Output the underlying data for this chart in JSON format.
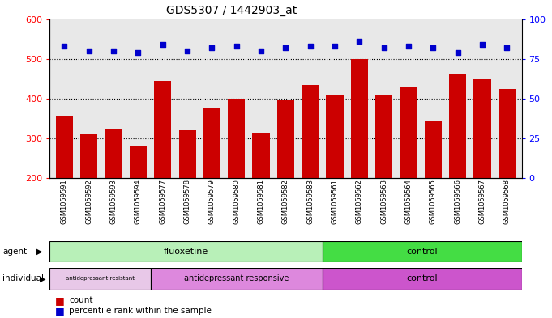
{
  "title": "GDS5307 / 1442903_at",
  "samples": [
    "GSM1059591",
    "GSM1059592",
    "GSM1059593",
    "GSM1059594",
    "GSM1059577",
    "GSM1059578",
    "GSM1059579",
    "GSM1059580",
    "GSM1059581",
    "GSM1059582",
    "GSM1059583",
    "GSM1059561",
    "GSM1059562",
    "GSM1059563",
    "GSM1059564",
    "GSM1059565",
    "GSM1059566",
    "GSM1059567",
    "GSM1059568"
  ],
  "bar_values": [
    357,
    310,
    325,
    280,
    445,
    320,
    378,
    400,
    315,
    398,
    435,
    410,
    500,
    410,
    430,
    345,
    460,
    448,
    425
  ],
  "percentiles": [
    83,
    80,
    80,
    79,
    84,
    80,
    82,
    83,
    80,
    82,
    83,
    83,
    86,
    82,
    83,
    82,
    79,
    84,
    82
  ],
  "ylim_left": [
    200,
    600
  ],
  "ylim_right": [
    0,
    100
  ],
  "yticks_left": [
    200,
    300,
    400,
    500,
    600
  ],
  "yticks_right": [
    0,
    25,
    50,
    75,
    100
  ],
  "bar_color": "#cc0000",
  "dot_color": "#0000cc",
  "grid_values": [
    300,
    400,
    500
  ],
  "fluox_n": 11,
  "resist_n": 4,
  "respond_n": 7,
  "ctrl_n": 8,
  "agent_fluox_color": "#b8f0b8",
  "agent_ctrl_color": "#44dd44",
  "indiv_resist_color": "#e8c8e8",
  "indiv_respond_color": "#dd88dd",
  "indiv_ctrl_color": "#cc55cc",
  "plot_bg": "#e8e8e8",
  "title_fontsize": 10,
  "tick_fontsize": 6,
  "label_fontsize": 8,
  "panel_fontsize": 8
}
